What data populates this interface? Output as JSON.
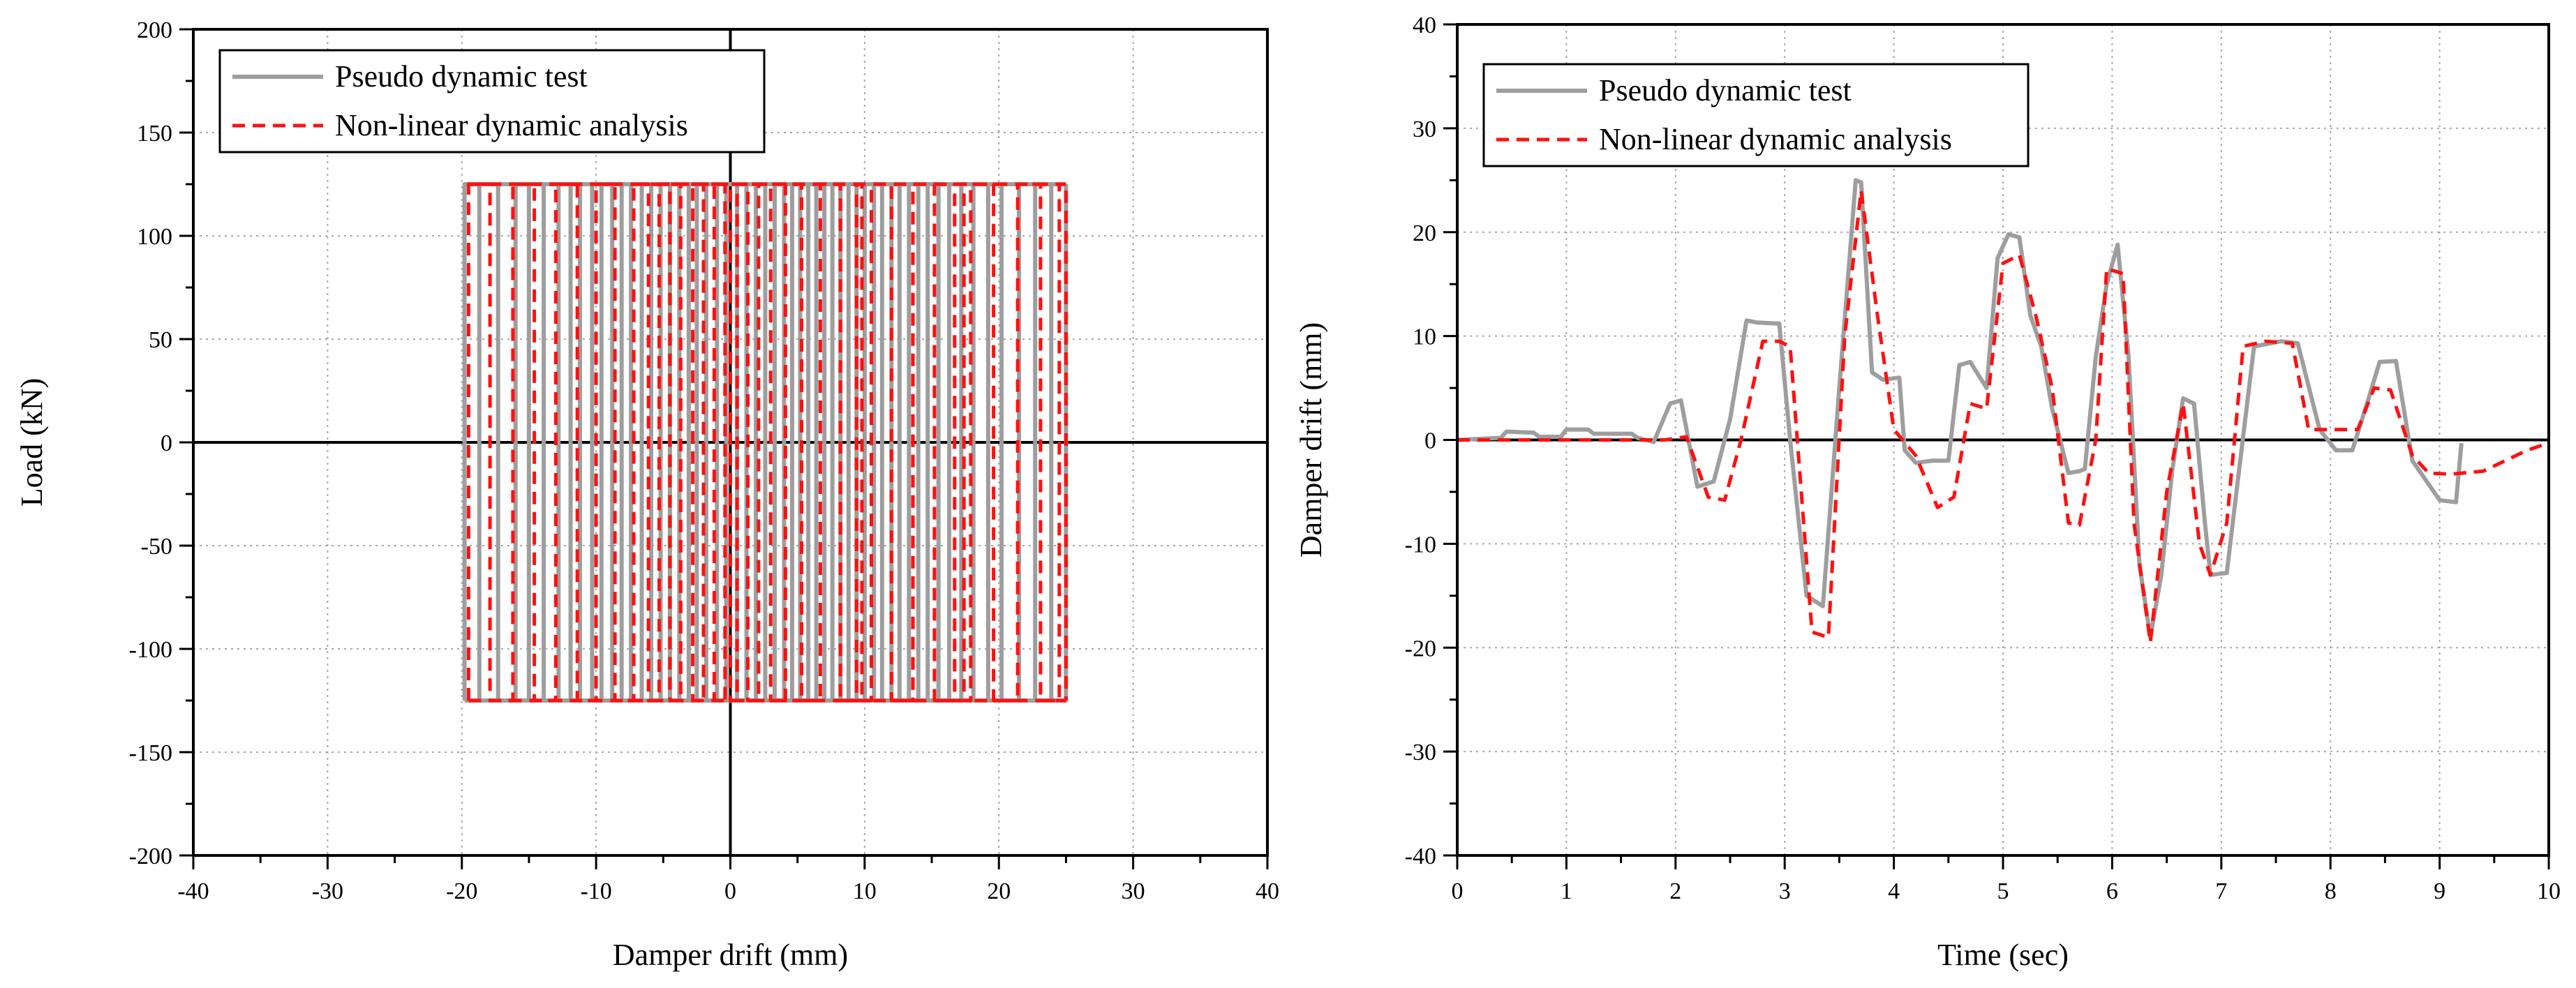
{
  "colors": {
    "test": "#9e9e9e",
    "analysis": "#ff1010",
    "grid": "#a8a8a8",
    "axis": "#000000"
  },
  "chart_data": [
    {
      "type": "line",
      "xlabel": "Damper drift (mm)",
      "ylabel": "Load (kN)",
      "xlim": [
        -40,
        40
      ],
      "ylim": [
        -200,
        200
      ],
      "xticks": [
        "-40",
        "-30",
        "-20",
        "-10",
        "0",
        "10",
        "20",
        "30",
        "40"
      ],
      "yticks": [
        "200",
        "150",
        "100",
        "50",
        "0",
        "-50",
        "-100",
        "-150",
        "-200"
      ],
      "xtick_values": [
        -40,
        -30,
        -20,
        -10,
        0,
        10,
        20,
        30,
        40
      ],
      "ytick_values": [
        200,
        150,
        100,
        50,
        0,
        -50,
        -100,
        -150,
        -200
      ],
      "grid": true,
      "legend_position": "top-left",
      "legend": [
        "Pseudo dynamic test",
        "Non-linear dynamic analysis"
      ],
      "load_level": 125,
      "series": [
        {
          "name": "Pseudo dynamic test",
          "style": "solid",
          "x": [
            -19.8,
            -18.7,
            -17.3,
            -16.0,
            -15.0,
            -13.9,
            -12.8,
            -11.9,
            -11.2,
            -10.3,
            -9.6,
            -8.8,
            -8.1,
            -7.4,
            -6.6,
            -5.9,
            -5.2,
            -4.5,
            -3.8,
            -3.1,
            -2.5,
            -1.8,
            -1.0,
            -0.3,
            0.5,
            1.2,
            1.9,
            2.6,
            3.3,
            4.0,
            4.6,
            5.2,
            5.8,
            6.4,
            7.0,
            7.6,
            8.2,
            8.8,
            9.4,
            10.0,
            10.7,
            11.3,
            12.0,
            12.6,
            13.3,
            14.0,
            14.7,
            15.5,
            16.3,
            17.2,
            18.1,
            19.2,
            20.2,
            21.5,
            22.7,
            23.9,
            25.0
          ],
          "y_level": 125
        },
        {
          "name": "Non-linear dynamic analysis",
          "style": "dashed",
          "x": [
            -19.5,
            -17.9,
            -16.2,
            -14.6,
            -13.0,
            -11.4,
            -10.0,
            -8.6,
            -7.2,
            -6.1,
            -5.3,
            -4.5,
            -3.7,
            -2.8,
            -2.0,
            -1.2,
            -0.4,
            0.0,
            0.5,
            1.3,
            2.1,
            3.0,
            4.1,
            5.3,
            6.7,
            8.2,
            9.4,
            9.8,
            10.5,
            12.0,
            13.6,
            15.2,
            16.7,
            17.4,
            17.9,
            19.6,
            21.4,
            23.1,
            24.5,
            25.0
          ],
          "y_level": 125
        }
      ]
    },
    {
      "type": "line",
      "xlabel": "Time (sec)",
      "ylabel": "Damper drift (mm)",
      "xlim": [
        0,
        10
      ],
      "ylim": [
        -40,
        40
      ],
      "xticks": [
        "0",
        "1",
        "2",
        "3",
        "4",
        "5",
        "6",
        "7",
        "8",
        "9",
        "10"
      ],
      "yticks": [
        "40",
        "30",
        "20",
        "10",
        "0",
        "-10",
        "-20",
        "-30",
        "-40"
      ],
      "xtick_values": [
        0,
        1,
        2,
        3,
        4,
        5,
        6,
        7,
        8,
        9,
        10
      ],
      "ytick_values": [
        40,
        30,
        20,
        10,
        0,
        -10,
        -20,
        -30,
        -40
      ],
      "grid": true,
      "legend_position": "top-left",
      "legend": [
        "Pseudo dynamic test",
        "Non-linear dynamic analysis"
      ],
      "series": [
        {
          "name": "Pseudo dynamic test",
          "style": "solid",
          "x": [
            0,
            0.4,
            0.45,
            0.7,
            0.75,
            0.95,
            1.0,
            1.2,
            1.25,
            1.6,
            1.65,
            1.8,
            1.95,
            2.05,
            2.2,
            2.35,
            2.5,
            2.65,
            2.75,
            2.95,
            3.05,
            3.2,
            3.35,
            3.5,
            3.65,
            3.7,
            3.8,
            3.9,
            4.05,
            4.1,
            4.2,
            4.35,
            4.5,
            4.6,
            4.7,
            4.85,
            4.95,
            5.05,
            5.15,
            5.25,
            5.35,
            5.45,
            5.6,
            5.7,
            5.75,
            5.85,
            5.95,
            6.05,
            6.15,
            6.25,
            6.35,
            6.45,
            6.55,
            6.65,
            6.75,
            6.85,
            6.9,
            7.05,
            7.15,
            7.3,
            7.55,
            7.7,
            7.9,
            8.05,
            8.2,
            8.35,
            8.45,
            8.6,
            8.75,
            9.0,
            9.15,
            9.2
          ],
          "y": [
            0,
            0.2,
            0.8,
            0.7,
            0.3,
            0.3,
            1.0,
            1.0,
            0.6,
            0.6,
            0.2,
            -0.2,
            3.5,
            3.8,
            -4.5,
            -4.0,
            2.0,
            11.5,
            11.3,
            11.2,
            0.0,
            -15.0,
            -16.0,
            5.0,
            25.0,
            24.8,
            6.5,
            5.8,
            6.0,
            -1.0,
            -2.2,
            -2.0,
            -2.0,
            7.2,
            7.5,
            5.0,
            17.5,
            19.8,
            19.5,
            12.0,
            9.0,
            3.0,
            -3.2,
            -3.0,
            -2.8,
            8.0,
            15.0,
            18.8,
            8.0,
            -12.0,
            -19.0,
            -13.0,
            -3.0,
            4.0,
            3.5,
            -8.0,
            -13.0,
            -12.8,
            -4.0,
            9.0,
            9.5,
            9.3,
            1.0,
            -1.0,
            -1.0,
            4.0,
            7.5,
            7.6,
            -2.0,
            -5.8,
            -6.0,
            -0.3
          ]
        },
        {
          "name": "Non-linear dynamic analysis",
          "style": "dashed",
          "x": [
            0,
            0.5,
            1.0,
            1.5,
            1.9,
            2.1,
            2.3,
            2.45,
            2.6,
            2.8,
            2.95,
            3.05,
            3.25,
            3.4,
            3.55,
            3.7,
            3.85,
            4.0,
            4.2,
            4.4,
            4.55,
            4.7,
            4.85,
            5.0,
            5.15,
            5.3,
            5.45,
            5.6,
            5.7,
            5.85,
            5.95,
            6.1,
            6.2,
            6.35,
            6.5,
            6.65,
            6.8,
            6.9,
            7.05,
            7.2,
            7.4,
            7.65,
            7.8,
            7.95,
            8.25,
            8.4,
            8.55,
            8.75,
            8.9,
            9.1,
            9.4,
            9.8,
            10.0
          ],
          "y": [
            0,
            0,
            0,
            0,
            0,
            0.3,
            -5.5,
            -5.8,
            0.0,
            9.5,
            9.5,
            9.0,
            -18.5,
            -19.0,
            10.0,
            24.0,
            12.0,
            1.0,
            -1.5,
            -6.5,
            -5.5,
            3.5,
            3.0,
            17.0,
            17.8,
            12.0,
            5.0,
            -8.0,
            -8.2,
            0.0,
            16.5,
            16.0,
            -8.0,
            -19.5,
            -5.0,
            3.5,
            -10.0,
            -13.0,
            -8.0,
            9.0,
            9.5,
            9.3,
            1.0,
            1.0,
            1.0,
            5.0,
            4.8,
            -1.5,
            -3.2,
            -3.3,
            -3.0,
            -1.0,
            -0.3
          ]
        }
      ]
    }
  ]
}
